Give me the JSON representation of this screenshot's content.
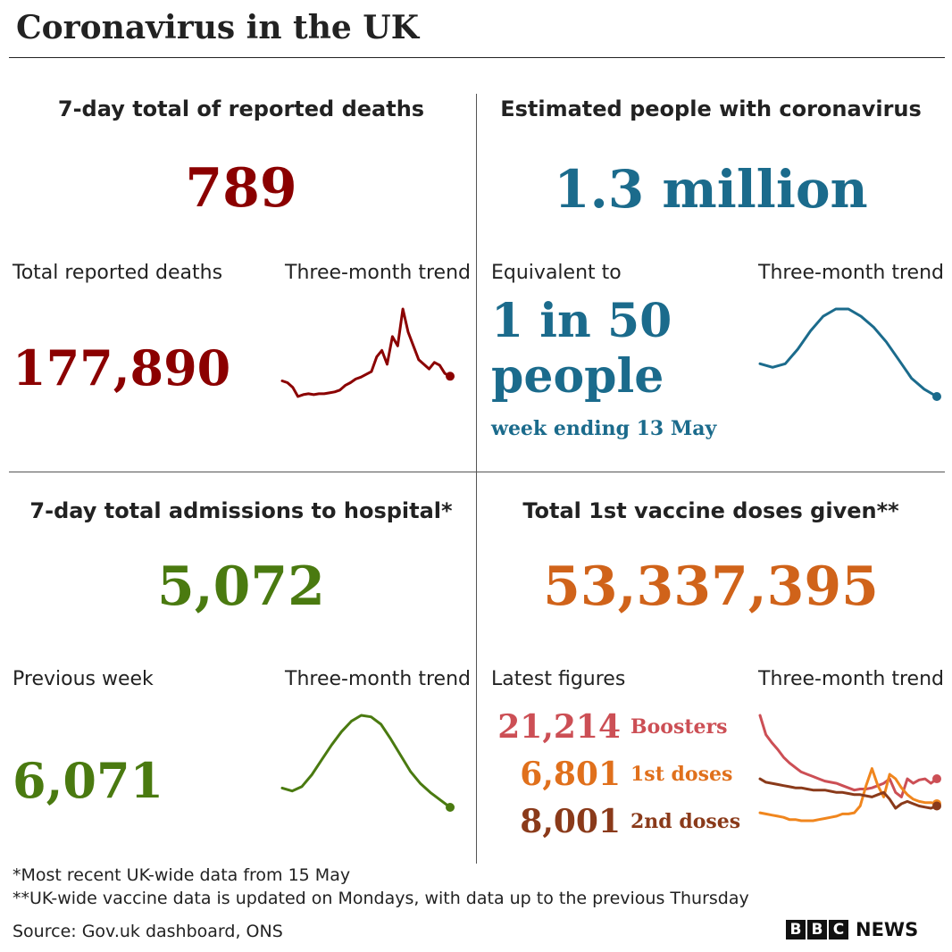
{
  "header": {
    "title": "Coronavirus in the UK"
  },
  "colors": {
    "deaths": "#8b0000",
    "infections": "#1b6b8c",
    "hospital": "#4a7a10",
    "vaccine": "#d0631a",
    "boosters": "#cc4f55",
    "first_doses": "#f0861e",
    "second_doses": "#8a3a1a"
  },
  "deaths": {
    "title": "7-day total of reported deaths",
    "value": "789",
    "total_label": "Total reported deaths",
    "total_value": "177,890",
    "trend_label": "Three-month trend",
    "trend_values": [
      62,
      60,
      55,
      45,
      47,
      48,
      47,
      48,
      48,
      49,
      50,
      52,
      57,
      60,
      64,
      66,
      69,
      72,
      88,
      95,
      80,
      110,
      100,
      140,
      115,
      100,
      85,
      80,
      75,
      82,
      79,
      70,
      67
    ]
  },
  "infections": {
    "title": "Estimated people with coronavirus",
    "value": "1.3 million",
    "equiv_label": "Equivalent to",
    "equiv_line1": "1 in 50",
    "equiv_line2": "people",
    "week_note": "week ending 13 May",
    "trend_label": "Three-month trend",
    "trend_values": [
      2.2,
      2.1,
      2.2,
      2.6,
      3.1,
      3.5,
      3.7,
      3.7,
      3.5,
      3.2,
      2.8,
      2.3,
      1.8,
      1.5,
      1.3
    ]
  },
  "hospital": {
    "title": "7-day total admissions to hospital*",
    "value": "5,072",
    "prev_label": "Previous week",
    "prev_value": "6,071",
    "trend_label": "Three-month trend",
    "trend_values": [
      4.5,
      4.3,
      4.6,
      5.4,
      6.4,
      7.4,
      8.3,
      9.0,
      9.4,
      9.3,
      8.8,
      7.8,
      6.7,
      5.6,
      4.8,
      4.2,
      3.7,
      3.2
    ]
  },
  "vaccine": {
    "title": "Total 1st vaccine doses given**",
    "value": "53,337,395",
    "latest_label": "Latest figures",
    "trend_label": "Three-month trend",
    "rows": [
      {
        "value": "21,214",
        "label": "Boosters"
      },
      {
        "value": "6,801",
        "label": "1st doses"
      },
      {
        "value": "8,001",
        "label": "2nd doses"
      }
    ],
    "trend_series": [
      {
        "key": "boosters",
        "values": [
          92,
          75,
          68,
          62,
          55,
          50,
          46,
          42,
          40,
          38,
          36,
          34,
          33,
          32,
          30,
          28,
          26,
          27,
          27,
          28,
          30,
          32,
          36,
          24,
          20,
          36,
          32,
          35,
          36,
          32,
          36
        ]
      },
      {
        "key": "first_doses",
        "values": [
          6,
          5,
          4,
          3,
          2,
          0,
          0,
          -1,
          -1,
          -1,
          0,
          1,
          2,
          3,
          5,
          5,
          6,
          12,
          30,
          45,
          30,
          20,
          40,
          36,
          28,
          22,
          18,
          16,
          15,
          15,
          14
        ]
      },
      {
        "key": "second_doses",
        "values": [
          36,
          33,
          32,
          31,
          30,
          29,
          28,
          28,
          27,
          26,
          26,
          26,
          25,
          24,
          24,
          23,
          22,
          22,
          21,
          20,
          22,
          24,
          18,
          10,
          14,
          16,
          14,
          12,
          11,
          10,
          12
        ]
      }
    ]
  },
  "footer": {
    "note1": "*Most recent UK-wide data from 15 May",
    "note2": "**UK-wide vaccine data is updated on Mondays, with data up to the previous Thursday",
    "source": "Source: Gov.uk dashboard, ONS",
    "brand_letters": [
      "B",
      "B",
      "C"
    ],
    "brand_text": "NEWS"
  }
}
